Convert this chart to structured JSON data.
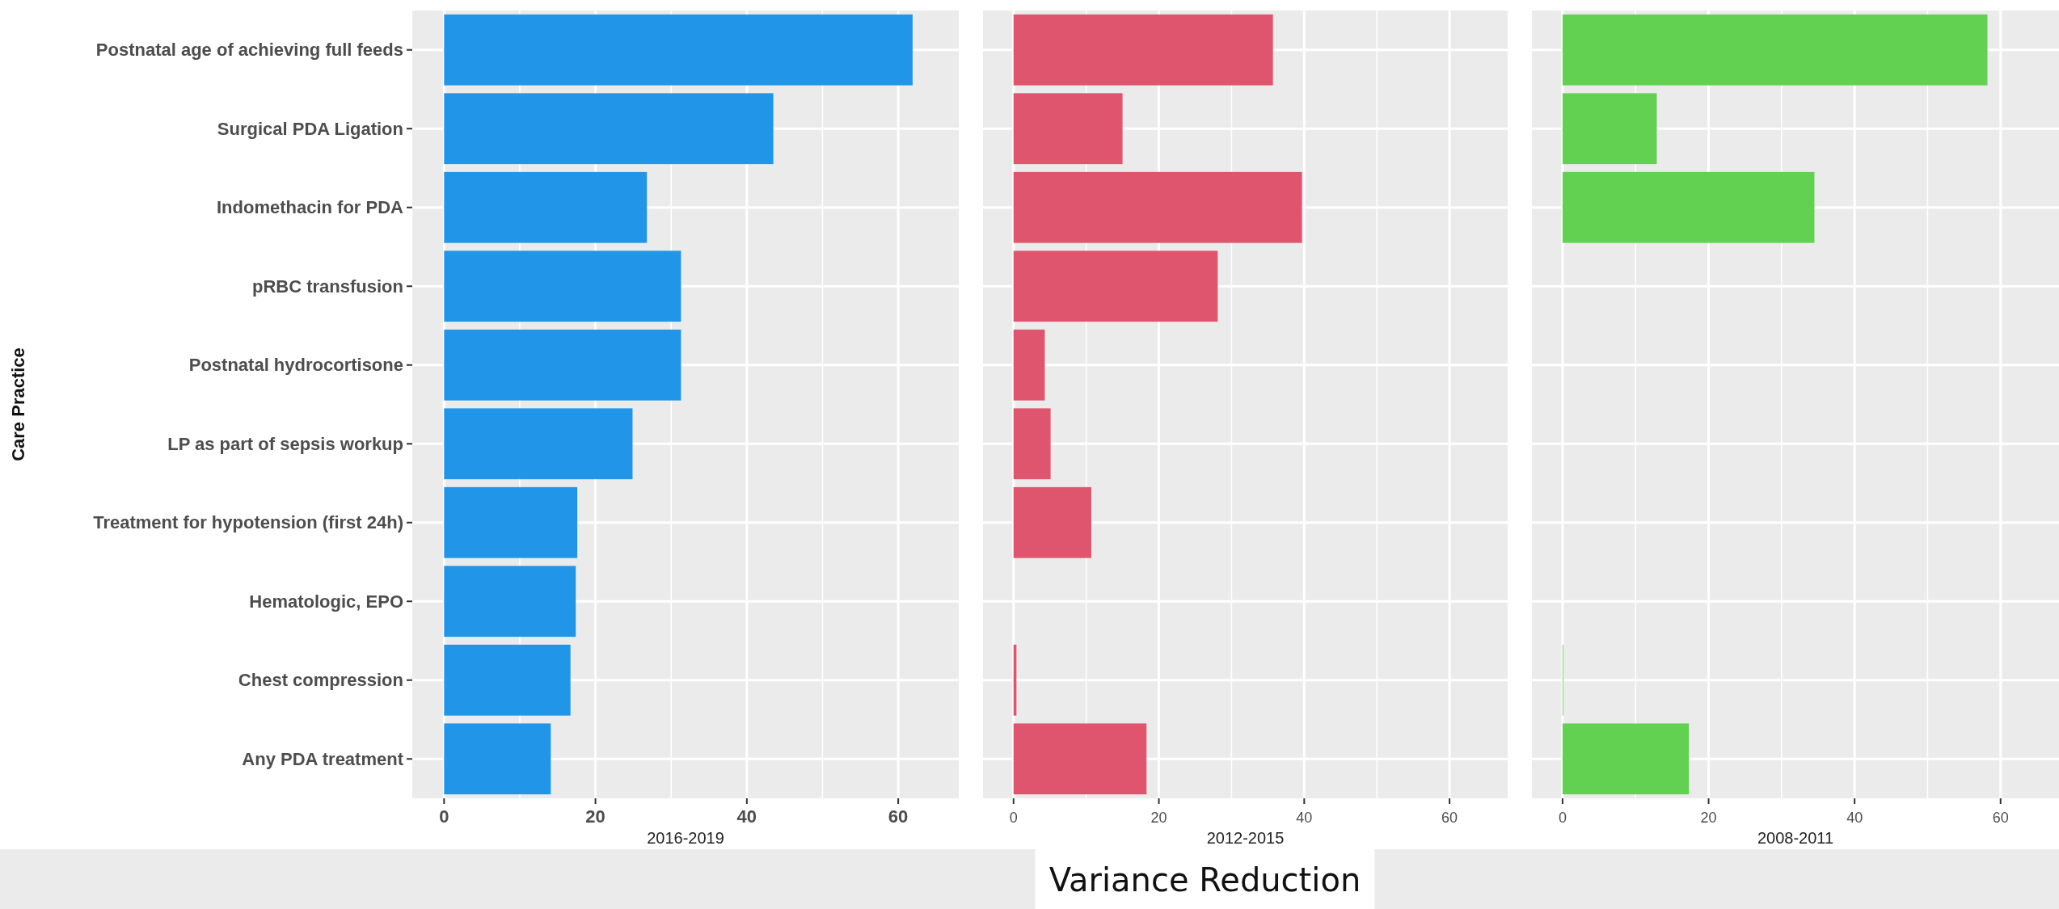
{
  "chart_data": [
    {
      "type": "bar",
      "orientation": "horizontal",
      "ylabel": "Care Practice",
      "xlabel": "2016-2019",
      "categories": [
        "Postnatal age of achieving full feeds",
        "Surgical PDA Ligation",
        "Indomethacin for PDA",
        "pRBC transfusion",
        "Postnatal hydrocortisone",
        "LP as part of sepsis workup",
        "Treatment for hypotension (first 24h)",
        "Hematologic, EPO",
        "Chest compression",
        "Any PDA treatment"
      ],
      "values": [
        61.9,
        43.5,
        26.8,
        31.3,
        31.3,
        24.9,
        17.6,
        17.4,
        16.7,
        14.1
      ],
      "color": "#2196e8",
      "xlim": [
        -4.2,
        68
      ],
      "xticks": [
        0,
        20,
        40,
        60
      ],
      "grid": true
    },
    {
      "type": "bar",
      "orientation": "horizontal",
      "xlabel": "2012-2015",
      "categories": [
        null,
        null,
        null,
        null,
        null,
        null,
        null,
        null,
        null,
        null
      ],
      "values": [
        35.7,
        15.0,
        39.7,
        28.1,
        4.3,
        5.1,
        10.7,
        null,
        0.4,
        18.3
      ],
      "color": "#e0556e",
      "xlim": [
        -4.2,
        68
      ],
      "xticks": [
        0,
        20,
        40,
        60
      ],
      "grid": true,
      "tick_labels": "x",
      "annotations": [
        "Variance Reduction"
      ]
    },
    {
      "type": "bar",
      "orientation": "horizontal",
      "xlabel": "2008-2011",
      "categories": [
        null,
        null,
        null,
        null,
        null,
        null,
        null,
        null,
        null,
        null
      ],
      "values": [
        58.2,
        12.9,
        34.5,
        null,
        null,
        null,
        null,
        null,
        0.1,
        17.3
      ],
      "color": "#62d152",
      "xlim": [
        -4.2,
        68
      ],
      "xticks": [
        0,
        20,
        40,
        60
      ],
      "grid": true,
      "tick_labels": "x"
    }
  ]
}
